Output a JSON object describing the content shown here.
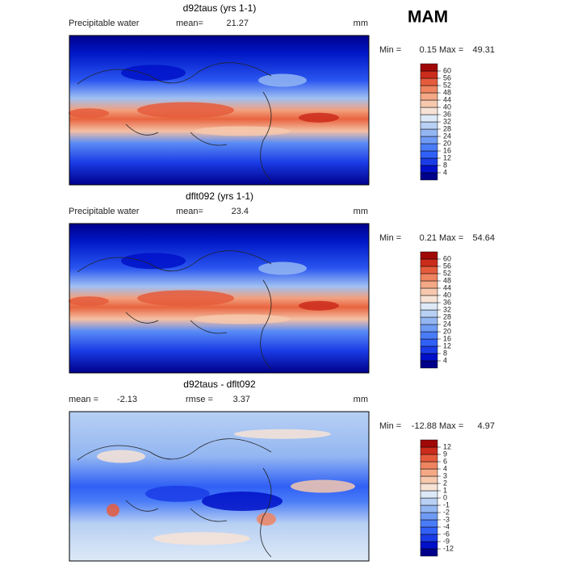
{
  "header": {
    "season": "MAM"
  },
  "palette": [
    "#00008b",
    "#0010c8",
    "#1a3ce6",
    "#3060f5",
    "#4a7cf7",
    "#6f9bf5",
    "#93b6f2",
    "#b8d0f3",
    "#dde9f7",
    "#f7e3d6",
    "#f6c8ad",
    "#f4a886",
    "#ef8460",
    "#e55c3c",
    "#cc2c1c",
    "#a00808"
  ],
  "panels": [
    {
      "title": "d92taus (yrs 1-1)",
      "variable": "Precipitable water",
      "mean_label": "mean=",
      "mean": 21.27,
      "units": "mm",
      "min_label": "Min =",
      "min": 0.15,
      "max_label": "Max =",
      "max": 49.31,
      "levels": [
        4,
        8,
        12,
        16,
        20,
        24,
        28,
        32,
        36,
        40,
        44,
        48,
        52,
        56,
        60
      ]
    },
    {
      "title": "dflt092 (yrs 1-1)",
      "variable": "Precipitable water",
      "mean_label": "mean=",
      "mean": 23.4,
      "units": "mm",
      "min_label": "Min =",
      "min": 0.21,
      "max_label": "Max =",
      "max": 54.64,
      "levels": [
        4,
        8,
        12,
        16,
        20,
        24,
        28,
        32,
        36,
        40,
        44,
        48,
        52,
        56,
        60
      ]
    },
    {
      "title": "d92taus - dflt092",
      "mean_label": "mean =",
      "mean": -2.13,
      "rmse_label": "rmse =",
      "rmse": 3.37,
      "units": "mm",
      "min_label": "Min =",
      "min": -12.88,
      "max_label": "Max =",
      "max": 4.97,
      "levels": [
        -12,
        -9,
        -6,
        -4,
        -3,
        -2,
        -1,
        0,
        1,
        2,
        3,
        4,
        6,
        9,
        12
      ]
    }
  ]
}
